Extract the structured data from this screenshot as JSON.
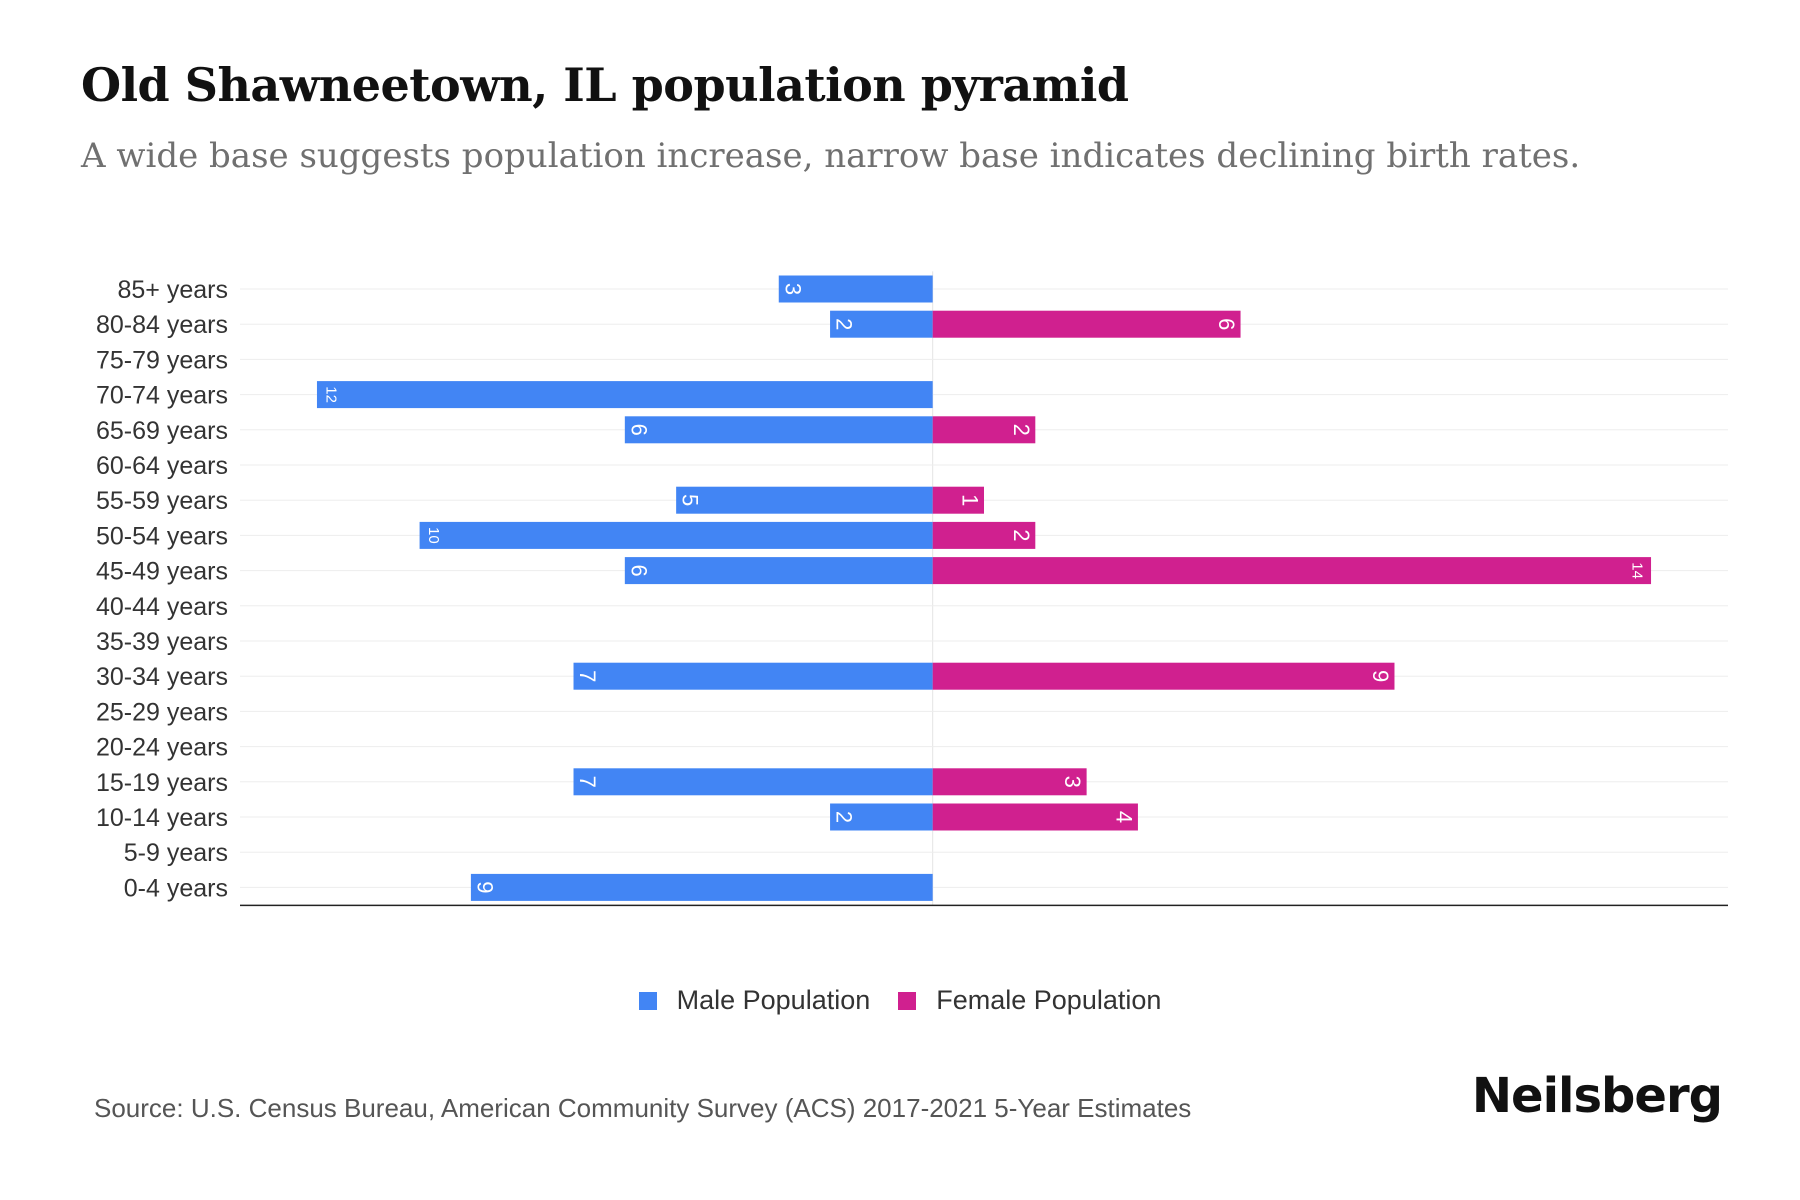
{
  "header": {
    "title": "Old Shawneetown, IL population pyramid",
    "subtitle": "A wide base suggests population increase, narrow base indicates declining birth rates."
  },
  "footer": {
    "source": "Source: U.S. Census Bureau, American Community Survey (ACS) 2017-2021 5-Year Estimates",
    "brand": "Neilsberg"
  },
  "colors": {
    "male": "#4285f4",
    "female": "#d0208f"
  },
  "chart_data": {
    "type": "bar",
    "orientation": "horizontal-pyramid",
    "title": "Old Shawneetown, IL population pyramid",
    "categories": [
      "85+ years",
      "80-84 years",
      "75-79 years",
      "70-74 years",
      "65-69 years",
      "60-64 years",
      "55-59 years",
      "50-54 years",
      "45-49 years",
      "40-44 years",
      "35-39 years",
      "30-34 years",
      "25-29 years",
      "20-24 years",
      "15-19 years",
      "10-14 years",
      "5-9 years",
      "0-4 years"
    ],
    "series": [
      {
        "name": "Male Population",
        "values": [
          3,
          2,
          0,
          12,
          6,
          0,
          5,
          10,
          6,
          0,
          0,
          7,
          0,
          0,
          7,
          2,
          0,
          9
        ]
      },
      {
        "name": "Female Population",
        "values": [
          0,
          6,
          0,
          0,
          2,
          0,
          1,
          2,
          14,
          0,
          0,
          9,
          0,
          0,
          3,
          4,
          0,
          0
        ]
      }
    ],
    "xlim": [
      -13.5,
      15.5
    ],
    "legend_position": "bottom-center",
    "grid": true
  }
}
